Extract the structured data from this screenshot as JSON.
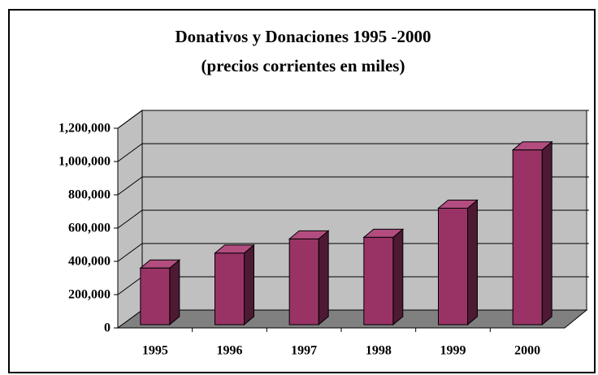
{
  "chart_data": {
    "type": "bar3d",
    "title": "Donativos y Donaciones 1995 -2000",
    "subtitle": "(precios corrientes en miles)",
    "categories": [
      "1995",
      "1996",
      "1997",
      "1998",
      "1999",
      "2000"
    ],
    "values": [
      340000,
      430000,
      515000,
      525000,
      700000,
      1050000
    ],
    "color": "#993366",
    "ylim": [
      0,
      1200000
    ],
    "yticks": [
      0,
      {
        "value": 200000,
        "label": "200,000"
      },
      {
        "value": 400000,
        "label": "400,000"
      },
      {
        "value": 600000,
        "label": "600,000"
      },
      {
        "value": 800000,
        "label": "800,000"
      },
      {
        "value": 1000000,
        "label": "1,000,000"
      },
      {
        "value": 1200000,
        "label": "1,200,000"
      }
    ],
    "grid": true
  }
}
